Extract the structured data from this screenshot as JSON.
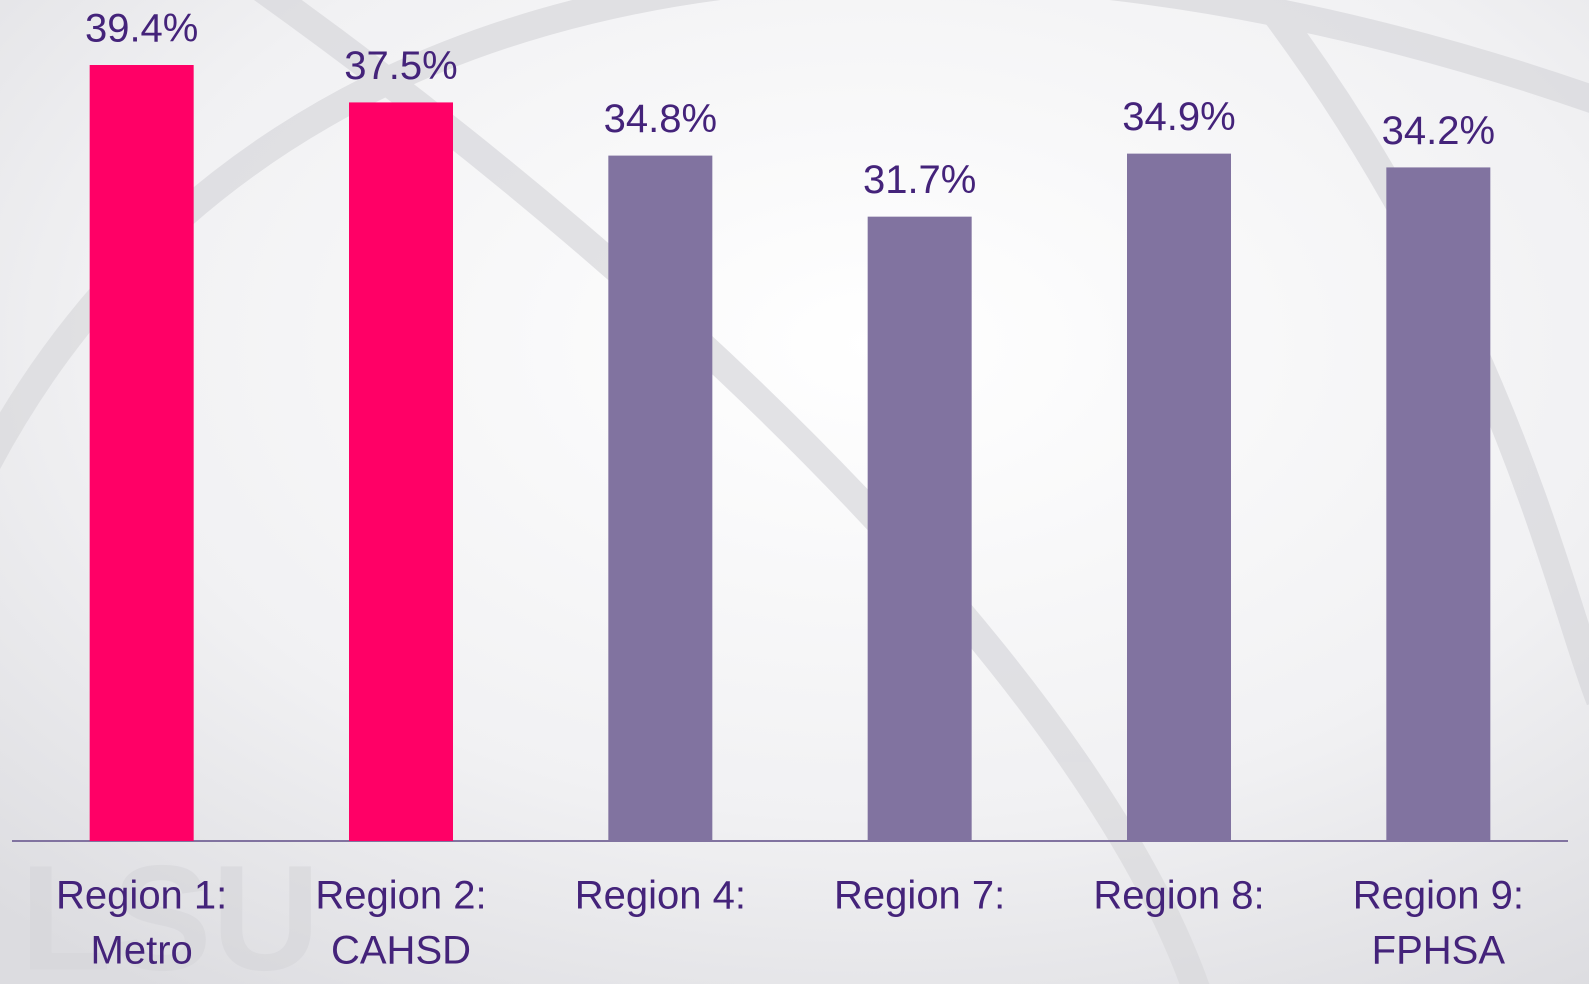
{
  "chart_data": {
    "type": "bar",
    "categories": [
      [
        "Region 1:",
        "Metro"
      ],
      [
        "Region 2:",
        "CAHSD"
      ],
      [
        "Region 4:"
      ],
      [
        "Region 7:"
      ],
      [
        "Region 8:"
      ],
      [
        "Region 9:",
        "FPHSA"
      ]
    ],
    "values": [
      39.4,
      37.5,
      34.8,
      31.7,
      34.9,
      34.2
    ],
    "value_labels": [
      "39.4%",
      "37.5%",
      "34.8%",
      "31.7%",
      "34.9%",
      "34.2%"
    ],
    "colors": [
      "#ff0066",
      "#ff0066",
      "#8173a0",
      "#8173a0",
      "#8173a0",
      "#8173a0"
    ]
  }
}
